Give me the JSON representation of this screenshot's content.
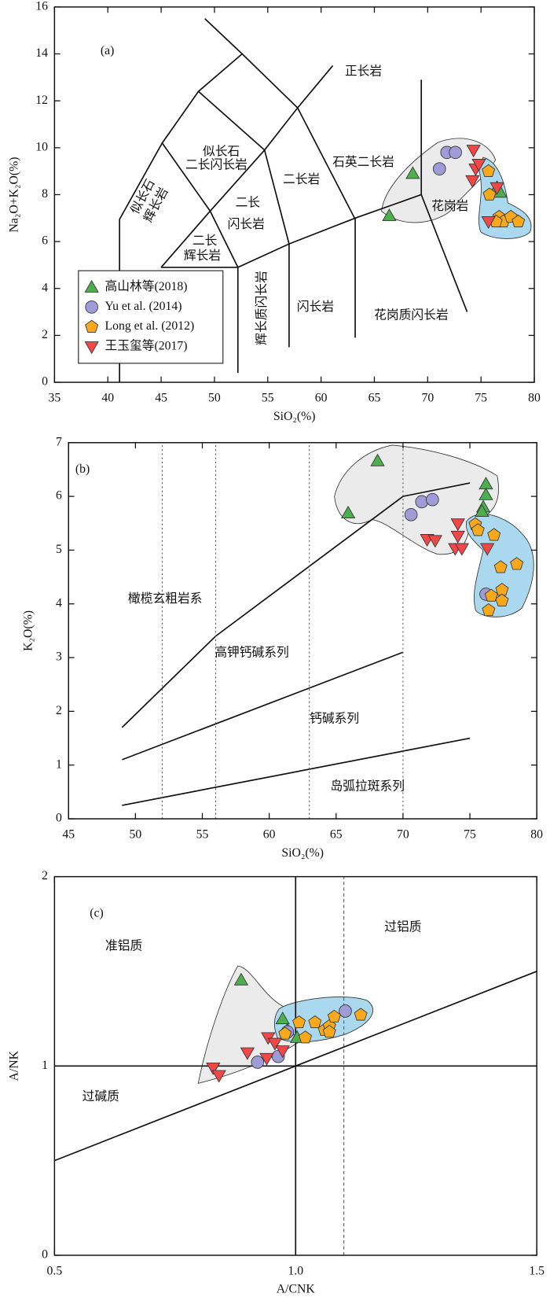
{
  "chart_data": [
    {
      "type": "scatter",
      "label": "(a)",
      "x_label": "SiO₂(%)",
      "y_label": "Na₂O+K₂O(%)",
      "xlim": [
        35,
        80
      ],
      "ylim": [
        0,
        16
      ],
      "xticks": [
        35,
        40,
        45,
        50,
        55,
        60,
        65,
        70,
        75,
        80
      ],
      "yticks": [
        0,
        2,
        4,
        6,
        8,
        10,
        12,
        14,
        16
      ],
      "legend": "lower left",
      "annotations": [
        "正长岩",
        "石英二长岩",
        "二长岩",
        "花岗岩",
        "似长石",
        "二长闪长岩",
        "似长石",
        "辉长岩",
        "二长",
        "闪长岩",
        "二长",
        "辉长岩",
        "辉长质闪长岩",
        "闪长岩",
        "花岗质闪长岩"
      ],
      "reference_lines": [
        {
          "style": "solid",
          "x": [
            41.1,
            41.1,
            45.1,
            48.5,
            52.6,
            57.8,
            63.2
          ],
          "y": [
            0,
            6.95,
            10.2,
            12.4,
            14.0,
            11.7,
            6.95
          ]
        },
        {
          "style": "solid",
          "x": [
            49.1,
            52.6
          ],
          "y": [
            15.5,
            14.0
          ]
        },
        {
          "style": "solid",
          "x": [
            45.0,
            52.2,
            57.0,
            63.2,
            69.4,
            73.7
          ],
          "y": [
            4.9,
            4.9,
            5.9,
            7.0,
            8.0,
            3.0
          ]
        },
        {
          "style": "solid",
          "x": [
            45.0,
            49.6,
            54.7,
            57.8,
            61.1
          ],
          "y": [
            4.9,
            7.3,
            9.9,
            11.7,
            13.5
          ]
        },
        {
          "style": "solid",
          "x": [
            49.6,
            52.2
          ],
          "y": [
            7.3,
            4.9
          ]
        },
        {
          "style": "solid",
          "x": [
            54.7,
            57.0
          ],
          "y": [
            9.9,
            5.9
          ]
        },
        {
          "style": "solid",
          "x": [
            45.1,
            49.6
          ],
          "y": [
            10.2,
            7.3
          ]
        },
        {
          "style": "solid",
          "x": [
            48.5,
            54.7
          ],
          "y": [
            12.4,
            9.9
          ]
        },
        {
          "style": "solid",
          "x": [
            52.2,
            52.2
          ],
          "y": [
            4.9,
            0.4
          ]
        },
        {
          "style": "solid",
          "x": [
            57.0,
            57.0
          ],
          "y": [
            5.9,
            1.5
          ]
        },
        {
          "style": "solid",
          "x": [
            63.2,
            63.2
          ],
          "y": [
            7.0,
            1.9
          ]
        },
        {
          "style": "solid",
          "x": [
            69.4,
            69.4
          ],
          "y": [
            8.0,
            12.9
          ]
        }
      ],
      "series": [
        {
          "name": "高山林等(2018)",
          "color": "#4cae4c",
          "marker": "triangle-up",
          "x": [
            68.6,
            66.4,
            76.5,
            76.8
          ],
          "values": [
            8.9,
            7.1,
            8.3,
            8.1
          ]
        },
        {
          "name": "Yu et al. (2014)",
          "color": "#9f9bd6",
          "marker": "circle",
          "x": [
            71.8,
            72.6,
            71.1
          ],
          "values": [
            9.8,
            9.8,
            9.1
          ]
        },
        {
          "name": "Long et al. (2012)",
          "color": "#f8a81c",
          "marker": "pentagon",
          "x": [
            75.7,
            75.8,
            76.7,
            77.1,
            77.8,
            78.5,
            76.4
          ],
          "values": [
            9.0,
            8.0,
            7.05,
            6.85,
            7.05,
            6.85,
            6.85
          ]
        },
        {
          "name": "王玉玺等(2017)",
          "color": "#f04848",
          "marker": "triangle-down",
          "x": [
            74.3,
            74.5,
            74.2,
            74.8,
            76.5,
            75.7
          ],
          "values": [
            9.9,
            9.1,
            8.6,
            9.3,
            8.3,
            6.85
          ]
        }
      ]
    },
    {
      "type": "scatter",
      "label": "(b)",
      "x_label": "SiO₂(%)",
      "y_label": "K₂O(%)",
      "xlim": [
        45,
        80
      ],
      "ylim": [
        0,
        7
      ],
      "xticks": [
        45,
        50,
        55,
        60,
        65,
        70,
        75,
        80
      ],
      "yticks": [
        0,
        1,
        2,
        3,
        4,
        5,
        6,
        7
      ],
      "annotations": [
        "橄榄玄粗岩系",
        "高钾钙碱系列",
        "钙碱系列",
        "岛弧拉斑系列"
      ],
      "reference_lines": [
        {
          "style": "solid",
          "x": [
            49,
            56,
            70,
            75
          ],
          "y": [
            1.7,
            3.4,
            6.0,
            6.25
          ]
        },
        {
          "style": "solid",
          "x": [
            49,
            70
          ],
          "y": [
            1.1,
            3.1
          ]
        },
        {
          "style": "solid",
          "x": [
            49,
            75
          ],
          "y": [
            0.25,
            1.5
          ]
        },
        {
          "style": "dotted",
          "x": [
            52,
            52
          ],
          "y": [
            0,
            7
          ]
        },
        {
          "style": "dotted",
          "x": [
            56,
            56
          ],
          "y": [
            0,
            7
          ]
        },
        {
          "style": "dotted",
          "x": [
            63,
            63
          ],
          "y": [
            0,
            7
          ]
        },
        {
          "style": "dotted",
          "x": [
            70,
            70
          ],
          "y": [
            0,
            7
          ]
        }
      ],
      "series": [
        {
          "color": "#4cae4c",
          "marker": "triangle-up",
          "x": [
            68.1,
            65.9,
            76.2,
            76.2,
            76.0,
            75.9
          ],
          "values": [
            6.66,
            5.69,
            6.23,
            6.03,
            5.8,
            5.72
          ]
        },
        {
          "color": "#9f9bd6",
          "marker": "circle",
          "x": [
            70.6,
            71.4,
            72.2,
            76.2
          ],
          "values": [
            5.66,
            5.9,
            5.94,
            4.18
          ]
        },
        {
          "color": "#f8a81c",
          "marker": "pentagon",
          "x": [
            75.4,
            75.6,
            76.8,
            77.3,
            78.5,
            77.4,
            77.4,
            76.6,
            76.4
          ],
          "values": [
            5.48,
            5.37,
            5.28,
            4.68,
            4.74,
            4.26,
            4.06,
            4.15,
            3.88
          ]
        },
        {
          "color": "#f04848",
          "marker": "triangle-down",
          "x": [
            74.1,
            74.1,
            71.8,
            72.4,
            73.9,
            74.4,
            76.3
          ],
          "values": [
            5.49,
            5.26,
            5.2,
            5.18,
            5.03,
            5.03,
            5.03
          ]
        }
      ]
    },
    {
      "type": "scatter",
      "label": "(c)",
      "x_label": "A/CNK",
      "y_label": "A/NK",
      "xlim": [
        0.5,
        1.5
      ],
      "ylim": [
        0,
        2
      ],
      "xticks": [
        0.5,
        {
          "value": 1,
          "label": "1.0"
        },
        1.5
      ],
      "yticks": [
        0,
        1,
        2
      ],
      "annotations": [
        "准铝质",
        "过铝质",
        "过碱质"
      ],
      "reference_lines": [
        {
          "style": "solid",
          "x": [
            0.5,
            1.5
          ],
          "y": [
            1,
            1
          ]
        },
        {
          "style": "solid",
          "x": [
            1,
            1
          ],
          "y": [
            0,
            2
          ]
        },
        {
          "style": "dashed",
          "x": [
            1.1,
            1.1
          ],
          "y": [
            0,
            2
          ]
        },
        {
          "style": "solid",
          "x": [
            0.5,
            1.5
          ],
          "y": [
            0.5,
            1.5
          ]
        }
      ],
      "series": [
        {
          "color": "#4cae4c",
          "marker": "triangle-up",
          "x": [
            0.887,
            0.973,
            0.983,
            1.003
          ],
          "values": [
            1.454,
            1.249,
            1.19,
            1.15
          ]
        },
        {
          "color": "#9f9bd6",
          "marker": "circle",
          "x": [
            0.921,
            0.964,
            0.983,
            1.103
          ],
          "values": [
            1.02,
            1.05,
            1.18,
            1.29
          ]
        },
        {
          "color": "#f8a81c",
          "marker": "pentagon",
          "x": [
            0.978,
            1.02,
            1.04,
            1.06,
            1.07,
            1.08,
            1.07,
            1.135,
            1.007
          ],
          "values": [
            1.17,
            1.15,
            1.23,
            1.19,
            1.21,
            1.26,
            1.18,
            1.27,
            1.23
          ]
        },
        {
          "color": "#f04848",
          "marker": "triangle-down",
          "x": [
            0.829,
            0.841,
            0.9,
            0.943,
            0.94,
            0.957,
            0.973
          ],
          "values": [
            0.99,
            0.95,
            1.07,
            1.15,
            1.04,
            1.12,
            1.08
          ]
        }
      ]
    }
  ]
}
